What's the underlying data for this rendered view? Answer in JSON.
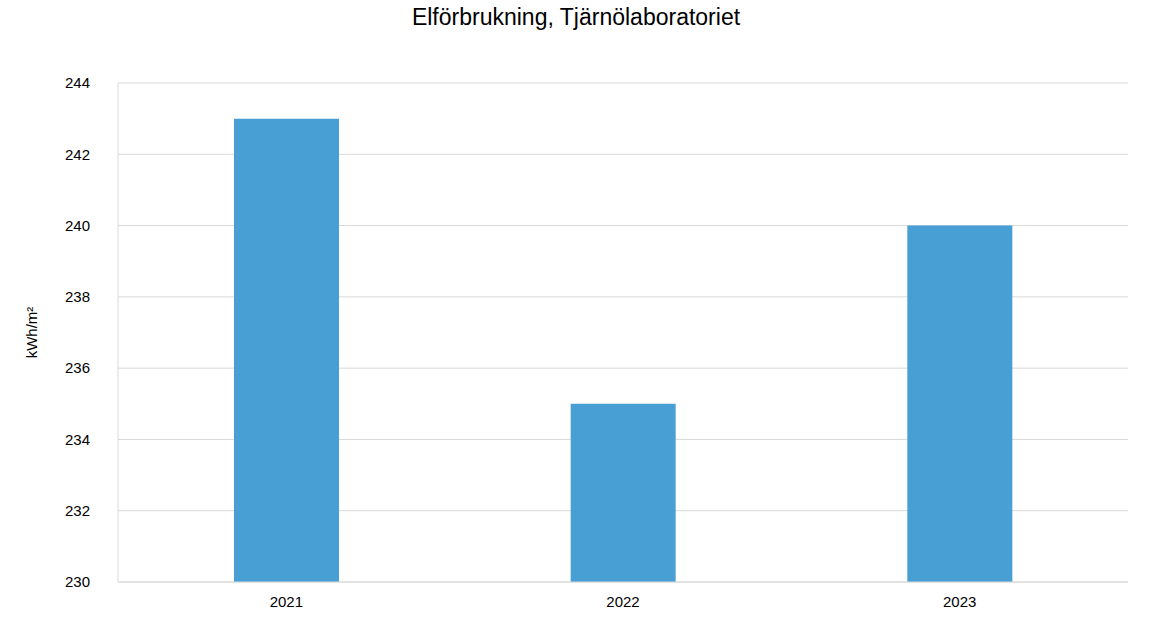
{
  "chart_data": {
    "type": "bar",
    "title": "Elförbrukning, Tjärnölaboratoriet",
    "y_label": "kWh/m²",
    "categories": [
      "2021",
      "2022",
      "2023"
    ],
    "values": [
      243,
      235,
      240
    ],
    "color": "#479fd3",
    "ylim": [
      230,
      244
    ],
    "yticks": [
      230,
      232,
      234,
      236,
      238,
      240,
      242,
      244
    ],
    "grid": true
  }
}
